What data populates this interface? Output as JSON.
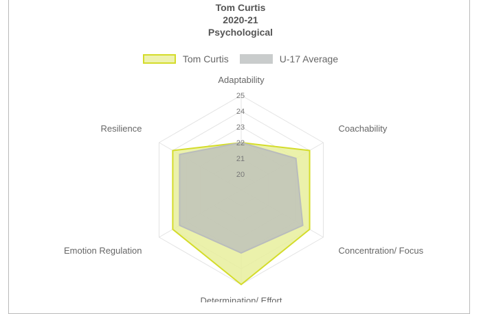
{
  "chart_data": {
    "type": "radar",
    "title_lines": [
      "Tom Curtis",
      "2020-21",
      "Psychological"
    ],
    "axes": [
      "Adaptability",
      "Coachability",
      "Concentration/ Focus",
      "Determination/ Effort",
      "Emotion Regulation",
      "Resilience"
    ],
    "r_range": [
      19,
      25
    ],
    "ticks": [
      20,
      21,
      22,
      23,
      24,
      25
    ],
    "grid": true,
    "legend_position": "top",
    "series": [
      {
        "name": "Tom Curtis",
        "values": [
          22,
          24,
          24,
          25,
          24,
          24
        ],
        "fill": "#e8ee9c",
        "stroke": "#d4dc2a"
      },
      {
        "name": "U-17 Average",
        "values": [
          22,
          23,
          23.5,
          23,
          23.5,
          23.5
        ],
        "fill": "#b9bcbc",
        "stroke": "#b9bcbc"
      }
    ]
  }
}
